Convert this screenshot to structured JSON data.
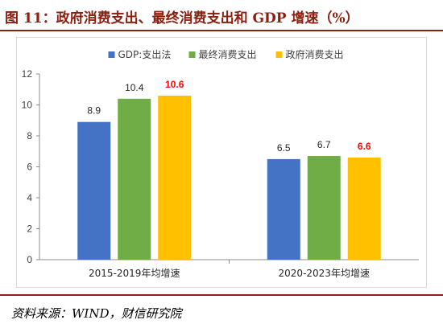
{
  "title": "图 11：政府消费支出、最终消费支出和 GDP 增速（%）",
  "source": "资料来源：WIND，财信研究院",
  "chart_data": {
    "type": "bar",
    "categories": [
      "2015-2019年均增速",
      "2020-2023年均增速"
    ],
    "series": [
      {
        "name": "GDP:支出法",
        "color": "#4472C4",
        "values": [
          8.9,
          6.5
        ]
      },
      {
        "name": "最终消费支出",
        "color": "#70AD47",
        "values": [
          10.4,
          6.7
        ]
      },
      {
        "name": "政府消费支出",
        "color": "#FFC000",
        "values": [
          10.6,
          6.6
        ]
      }
    ],
    "highlight_series": "政府消费支出",
    "highlight_label_color": "#FF0000",
    "ylim": [
      0,
      12
    ],
    "yticks": [
      0,
      2,
      4,
      6,
      8,
      10,
      12
    ],
    "grid": false,
    "legend_position": "top-center",
    "xlabel": "",
    "ylabel": ""
  }
}
